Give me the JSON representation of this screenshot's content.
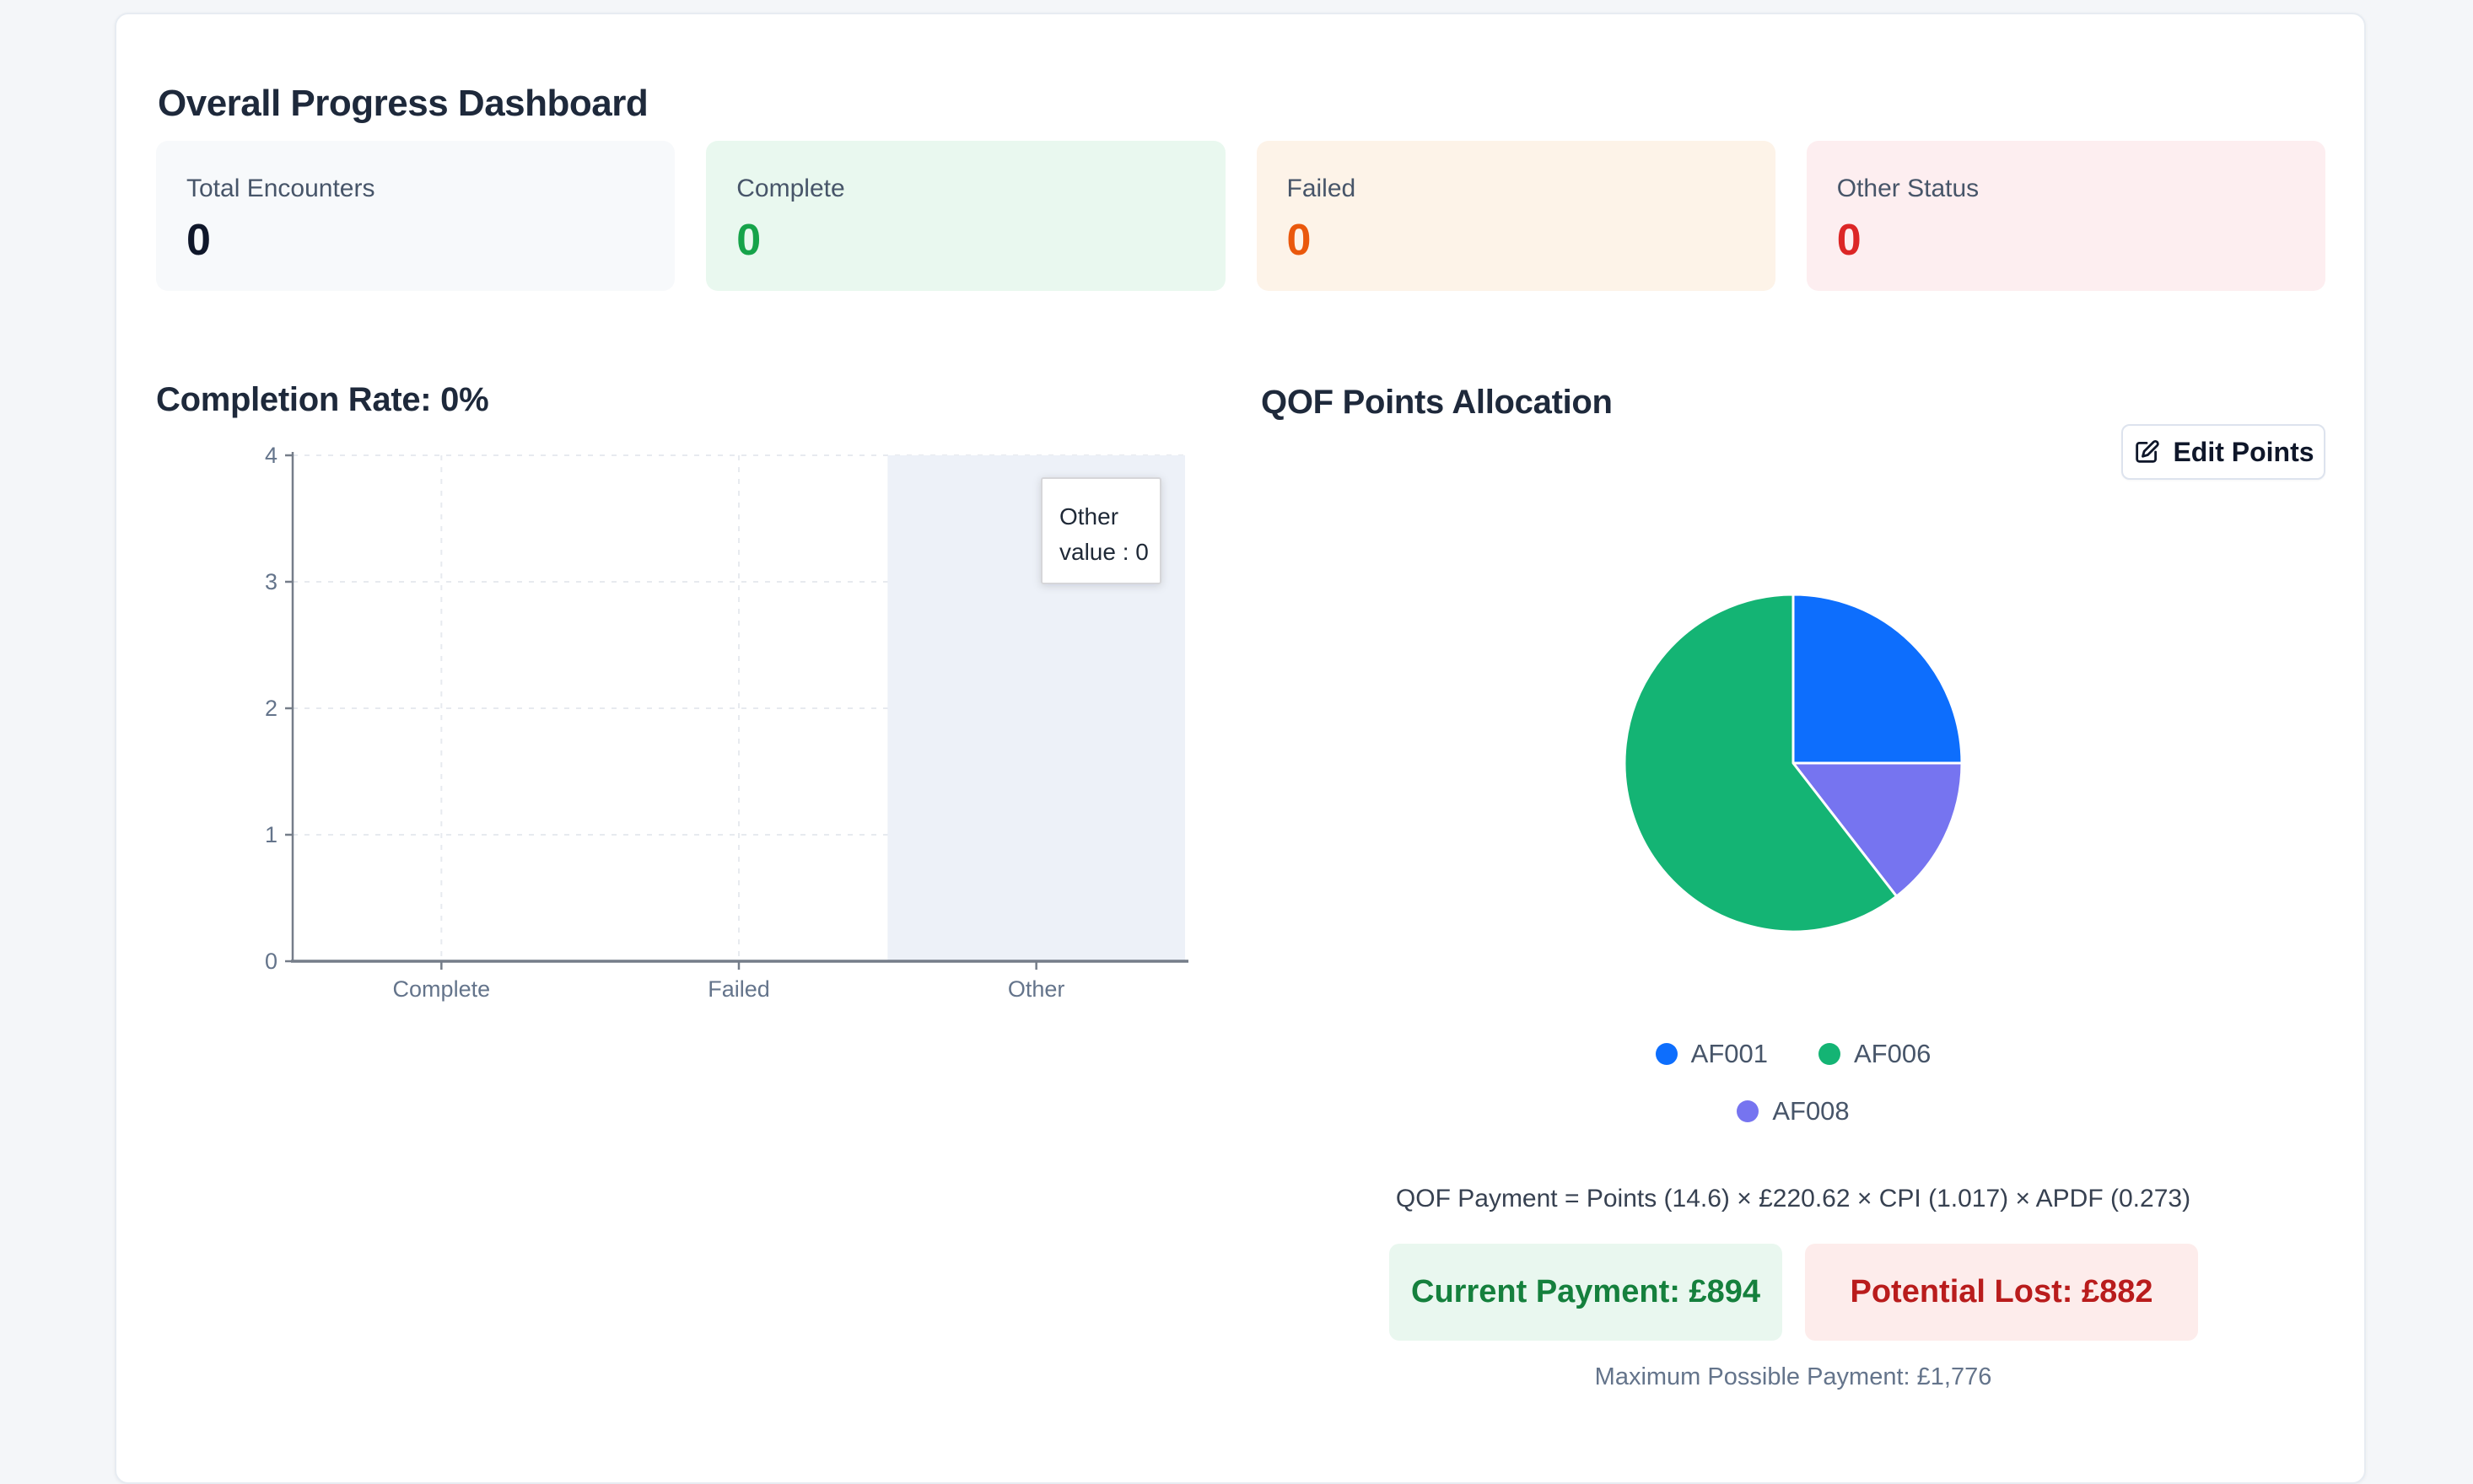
{
  "page": {
    "title": "Overall Progress Dashboard"
  },
  "stats": {
    "cards": [
      {
        "label": "Total Encounters",
        "value": "0",
        "bg": "#f7f9fb",
        "value_color": "#0f172a"
      },
      {
        "label": "Complete",
        "value": "0",
        "bg": "#e9f8ef",
        "value_color": "#16a34a"
      },
      {
        "label": "Failed",
        "value": "0",
        "bg": "#fdf3e8",
        "value_color": "#ea580c"
      },
      {
        "label": "Other Status",
        "value": "0",
        "bg": "#fdeef0",
        "value_color": "#dc2626"
      }
    ]
  },
  "completion": {
    "heading": "Completion Rate: 0%"
  },
  "qof": {
    "heading": "QOF Points Allocation",
    "edit_button": {
      "label": "Edit Points",
      "icon": "edit-icon"
    },
    "legend_rows": [
      [
        {
          "label": "AF001",
          "color": "#0d6efd"
        },
        {
          "label": "AF006",
          "color": "#14b474"
        }
      ],
      [
        {
          "label": "AF008",
          "color": "#7674f0"
        }
      ]
    ],
    "formula": "QOF Payment = Points (14.6) × £220.62 × CPI (1.017) × APDF (0.273)",
    "current_payment": "Current Payment: £894",
    "potential_lost": "Potential Lost: £882",
    "max_payment": "Maximum Possible Payment: £1,776"
  },
  "chart_data": [
    {
      "type": "bar",
      "title": "Completion Rate: 0%",
      "categories": [
        "Complete",
        "Failed",
        "Other"
      ],
      "values": [
        0,
        0,
        0
      ],
      "xlabel": "",
      "ylabel": "",
      "ylim": [
        0,
        4
      ],
      "yticks": [
        0,
        1,
        2,
        3,
        4
      ],
      "grid": true,
      "legend_position": "none",
      "highlighted_category": "Other",
      "tooltip": {
        "title": "Other",
        "line": "value : 0"
      },
      "colors": {
        "band": "#edf1f8",
        "grid": "#e7eaef",
        "axis": "#757d89",
        "tick_label": "#64748b",
        "bar": "#3b82f6",
        "tooltip_border": "#d6d6d9",
        "tooltip_text": "#1f2937"
      }
    },
    {
      "type": "pie",
      "title": "QOF Points Allocation",
      "slices": [
        {
          "label": "AF001",
          "percent": 25.0,
          "color": "#0d6efd"
        },
        {
          "label": "AF008",
          "percent": 14.5,
          "color": "#7674f0"
        },
        {
          "label": "AF006",
          "percent": 60.5,
          "color": "#14b474"
        }
      ],
      "legend_position": "bottom"
    }
  ]
}
